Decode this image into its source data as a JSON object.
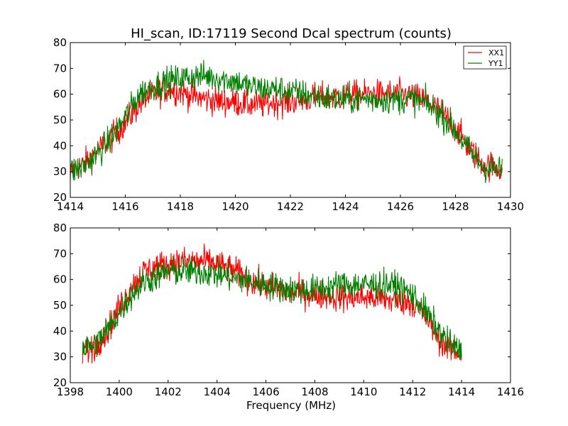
{
  "figure": {
    "title": "HI_scan, ID:17119 Second Dcal spectrum (counts)",
    "xlabel": "Frequency (MHz)"
  },
  "legend": {
    "placement": "upper-right of top panel",
    "entries": [
      {
        "name": "XX1",
        "color": "#ff0000"
      },
      {
        "name": "YY1",
        "color": "#008000"
      }
    ]
  },
  "chart_data": [
    {
      "type": "line",
      "panel": "top",
      "xlim": [
        1414,
        1430
      ],
      "ylim": [
        20,
        80
      ],
      "xticks": [
        "1414",
        "1416",
        "1418",
        "1420",
        "1422",
        "1424",
        "1426",
        "1428",
        "1430"
      ],
      "yticks": [
        "20",
        "30",
        "40",
        "50",
        "60",
        "70",
        "80"
      ],
      "grid": false,
      "noise": 2.8,
      "series": [
        {
          "name": "XX1",
          "color": "#ff0000",
          "x": [
            1414.0,
            1414.5,
            1415.0,
            1415.5,
            1416.0,
            1416.5,
            1417.0,
            1417.5,
            1418.0,
            1418.5,
            1419.0,
            1419.5,
            1420.0,
            1420.5,
            1421.0,
            1421.5,
            1422.0,
            1422.5,
            1423.0,
            1423.5,
            1424.0,
            1424.5,
            1425.0,
            1425.5,
            1426.0,
            1426.5,
            1427.0,
            1427.5,
            1428.0,
            1428.5,
            1429.0,
            1429.7
          ],
          "y": [
            30,
            33,
            38,
            43,
            49,
            56,
            60,
            62,
            61,
            59,
            58,
            57,
            57,
            56,
            56,
            57,
            57,
            58,
            59,
            59,
            59,
            60,
            60,
            60,
            60,
            59,
            57,
            53,
            47,
            39,
            33,
            31
          ]
        },
        {
          "name": "YY1",
          "color": "#008000",
          "x": [
            1414.0,
            1414.5,
            1415.0,
            1415.5,
            1416.0,
            1416.5,
            1417.0,
            1417.5,
            1418.0,
            1418.5,
            1419.0,
            1419.5,
            1420.0,
            1420.5,
            1421.0,
            1421.5,
            1422.0,
            1422.5,
            1423.0,
            1423.5,
            1424.0,
            1424.5,
            1425.0,
            1425.5,
            1426.0,
            1426.5,
            1427.0,
            1427.5,
            1428.0,
            1428.5,
            1429.0,
            1429.7
          ],
          "y": [
            30,
            32,
            37,
            43,
            51,
            60,
            63,
            65,
            66,
            67,
            67,
            66,
            65,
            63,
            62,
            62,
            61,
            60,
            59,
            58,
            58,
            58,
            58,
            58,
            58,
            58,
            56,
            52,
            46,
            38,
            32,
            30
          ]
        }
      ]
    },
    {
      "type": "line",
      "panel": "bottom",
      "xlim": [
        1398,
        1416
      ],
      "ylim": [
        20,
        80
      ],
      "xticks": [
        "1398",
        "1400",
        "1402",
        "1404",
        "1406",
        "1408",
        "1410",
        "1412",
        "1414",
        "1416"
      ],
      "yticks": [
        "20",
        "30",
        "40",
        "50",
        "60",
        "70",
        "80"
      ],
      "grid": false,
      "noise": 2.8,
      "series": [
        {
          "name": "XX1",
          "color": "#ff0000",
          "x": [
            1398.5,
            1399.0,
            1399.5,
            1400.0,
            1400.5,
            1401.0,
            1401.5,
            1402.0,
            1402.5,
            1403.0,
            1403.5,
            1404.0,
            1404.5,
            1405.0,
            1405.5,
            1406.0,
            1406.5,
            1407.0,
            1407.5,
            1408.0,
            1408.5,
            1409.0,
            1409.5,
            1410.0,
            1410.5,
            1411.0,
            1411.5,
            1412.0,
            1412.5,
            1413.0,
            1413.5,
            1414.0
          ],
          "y": [
            32,
            34,
            40,
            49,
            57,
            63,
            65,
            66,
            67,
            67,
            67,
            66,
            64,
            62,
            59,
            57,
            56,
            55,
            55,
            54,
            54,
            53,
            53,
            53,
            53,
            52,
            52,
            51,
            46,
            38,
            33,
            31
          ]
        },
        {
          "name": "YY1",
          "color": "#008000",
          "x": [
            1398.5,
            1399.0,
            1399.5,
            1400.0,
            1400.5,
            1401.0,
            1401.5,
            1402.0,
            1402.5,
            1403.0,
            1403.5,
            1404.0,
            1404.5,
            1405.0,
            1405.5,
            1406.0,
            1406.5,
            1407.0,
            1407.5,
            1408.0,
            1408.5,
            1409.0,
            1409.5,
            1410.0,
            1410.5,
            1411.0,
            1411.5,
            1412.0,
            1412.5,
            1413.0,
            1413.5,
            1414.0
          ],
          "y": [
            33,
            35,
            40,
            47,
            54,
            59,
            61,
            63,
            63,
            63,
            63,
            62,
            61,
            60,
            59,
            58,
            57,
            56,
            56,
            56,
            57,
            58,
            58,
            58,
            58,
            58,
            57,
            54,
            48,
            41,
            35,
            32
          ]
        }
      ]
    }
  ]
}
